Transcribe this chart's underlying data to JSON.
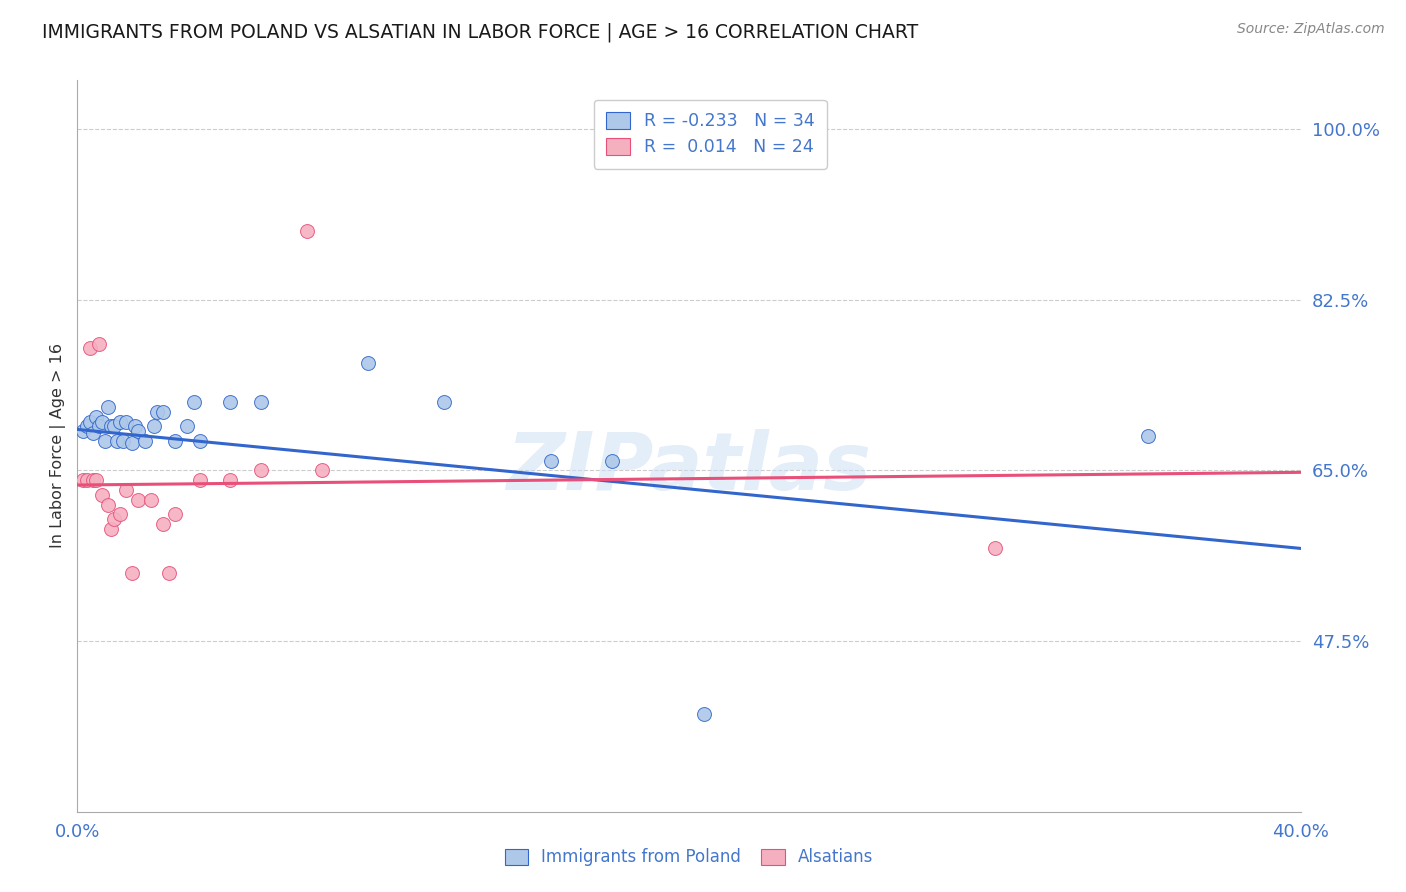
{
  "title": "IMMIGRANTS FROM POLAND VS ALSATIAN IN LABOR FORCE | AGE > 16 CORRELATION CHART",
  "source": "Source: ZipAtlas.com",
  "ylabel": "In Labor Force | Age > 16",
  "xlim": [
    0.0,
    0.4
  ],
  "ylim": [
    0.3,
    1.05
  ],
  "yticks": [
    0.475,
    0.65,
    0.825,
    1.0
  ],
  "ytick_labels": [
    "47.5%",
    "65.0%",
    "82.5%",
    "100.0%"
  ],
  "xticks": [
    0.0,
    0.05,
    0.1,
    0.15,
    0.2,
    0.25,
    0.3,
    0.35,
    0.4
  ],
  "blue_color": "#adc8e8",
  "pink_color": "#f5b0c0",
  "blue_line_color": "#3366cc",
  "pink_line_color": "#e8507a",
  "watermark": "ZIPatlas",
  "legend_r1_r": "R = -0.233",
  "legend_r1_n": "N = 34",
  "legend_r2_r": "R =  0.014",
  "legend_r2_n": "N = 24",
  "blue_scatter_x": [
    0.002,
    0.003,
    0.004,
    0.005,
    0.006,
    0.007,
    0.008,
    0.009,
    0.01,
    0.011,
    0.012,
    0.013,
    0.014,
    0.015,
    0.016,
    0.018,
    0.019,
    0.02,
    0.022,
    0.025,
    0.026,
    0.028,
    0.032,
    0.036,
    0.038,
    0.04,
    0.05,
    0.06,
    0.095,
    0.12,
    0.155,
    0.175,
    0.205,
    0.35
  ],
  "blue_scatter_y": [
    0.69,
    0.695,
    0.7,
    0.688,
    0.705,
    0.695,
    0.7,
    0.68,
    0.715,
    0.695,
    0.695,
    0.68,
    0.7,
    0.68,
    0.7,
    0.678,
    0.695,
    0.69,
    0.68,
    0.695,
    0.71,
    0.71,
    0.68,
    0.695,
    0.72,
    0.68,
    0.72,
    0.72,
    0.76,
    0.72,
    0.66,
    0.66,
    0.4,
    0.685
  ],
  "pink_scatter_x": [
    0.002,
    0.003,
    0.004,
    0.005,
    0.006,
    0.007,
    0.008,
    0.01,
    0.011,
    0.012,
    0.014,
    0.016,
    0.018,
    0.02,
    0.024,
    0.028,
    0.03,
    0.032,
    0.04,
    0.05,
    0.06,
    0.075,
    0.08,
    0.3
  ],
  "pink_scatter_y": [
    0.64,
    0.64,
    0.775,
    0.64,
    0.64,
    0.78,
    0.625,
    0.615,
    0.59,
    0.6,
    0.605,
    0.63,
    0.545,
    0.62,
    0.62,
    0.595,
    0.545,
    0.605,
    0.64,
    0.64,
    0.65,
    0.895,
    0.65,
    0.57
  ],
  "blue_trend_x": [
    0.0,
    0.4
  ],
  "blue_trend_y": [
    0.692,
    0.57
  ],
  "pink_trend_x": [
    0.0,
    0.4
  ],
  "pink_trend_y": [
    0.635,
    0.648
  ],
  "title_color": "#1a1a1a",
  "axis_color": "#4477cc",
  "background_color": "#ffffff",
  "grid_color": "#cccccc",
  "title_fontsize": 13.5,
  "source_fontsize": 10,
  "tick_fontsize": 13
}
